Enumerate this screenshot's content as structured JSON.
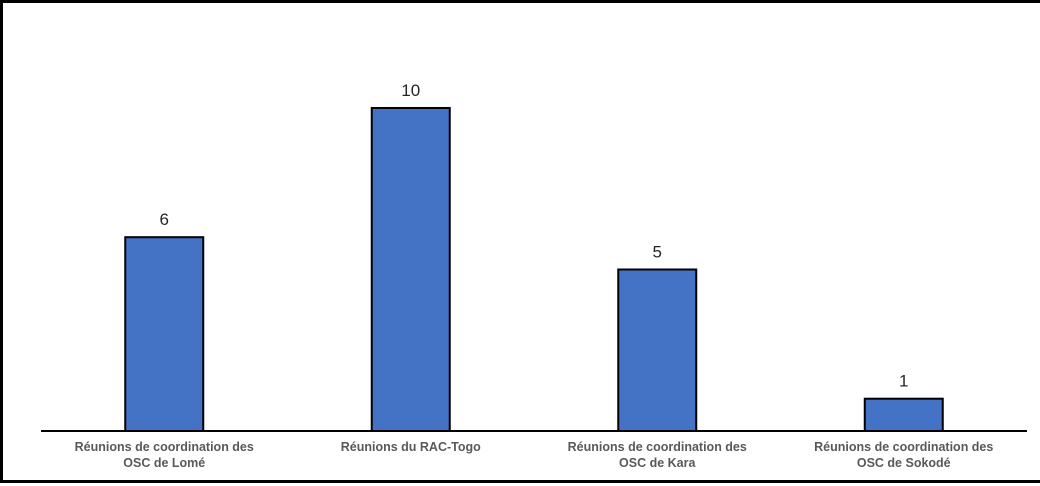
{
  "chart_data": {
    "type": "bar",
    "title": "",
    "xlabel": "",
    "ylabel": "",
    "categories": [
      [
        "Réunions de coordination des",
        "OSC de Lomé"
      ],
      [
        "Réunions du RAC-Togo"
      ],
      [
        "Réunions de coordination des",
        "OSC de Kara"
      ],
      [
        "Réunions de coordination des",
        "OSC de Sokodé"
      ]
    ],
    "values": [
      6,
      10,
      5,
      1
    ],
    "ylim": [
      0,
      10
    ],
    "grid": false,
    "bar_color": "#4472C4",
    "bar_outline_color": "#000000",
    "data_labels": true
  }
}
